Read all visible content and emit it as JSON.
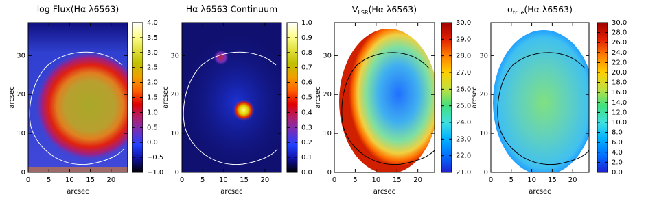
{
  "chart_data": [
    {
      "type": "heatmap",
      "title": "log Flux(Hα λ6563)",
      "xlabel": "arcsec",
      "ylabel": "arcsec",
      "xlim": [
        0,
        24
      ],
      "ylim": [
        0,
        38.5
      ],
      "xticks": [
        0,
        5,
        10,
        15,
        20
      ],
      "yticks": [
        0,
        10,
        20,
        30
      ],
      "colorbar": {
        "lim": [
          -1,
          4
        ],
        "colors": [
          "#000000",
          "#1010a0",
          "#2040ff",
          "#7030c0",
          "#b02070",
          "#e00000",
          "#ff6000",
          "#f0a000",
          "#c0c000",
          "#e0e040",
          "#ffff90",
          "#ffffff"
        ],
        "ticks": [
          {
            "value": 4,
            "label": "4.0"
          },
          3.5,
          {
            "value": 3,
            "label": "3.0"
          },
          2.5,
          {
            "value": 2,
            "label": "2.0"
          },
          1.5,
          {
            "value": 1,
            "label": "1.0"
          },
          0.5,
          {
            "value": 0,
            "label": "0.0"
          },
          {
            "value": -0.5,
            "label": "−0.5"
          },
          {
            "value": -1,
            "label": "−1.0"
          }
        ]
      }
    },
    {
      "type": "heatmap",
      "title": "Hα λ6563 Continuum",
      "xlabel": "arcsec",
      "ylabel": "arcsec",
      "xlim": [
        0,
        24
      ],
      "ylim": [
        0,
        38.5
      ],
      "xticks": [
        0,
        5,
        10,
        15,
        20
      ],
      "yticks": [
        0,
        10,
        20,
        30
      ],
      "colorbar": {
        "lim": [
          0,
          1
        ],
        "colors": [
          "#000000",
          "#1010a0",
          "#2040ff",
          "#7030c0",
          "#b02070",
          "#e00000",
          "#ff6000",
          "#f0a000",
          "#c0c000",
          "#e0e040",
          "#ffff90",
          "#ffffff"
        ],
        "ticks": [
          {
            "value": 1,
            "label": "1.0"
          },
          0.9,
          0.8,
          0.7,
          0.6,
          0.5,
          0.4,
          0.3,
          0.2,
          0.1,
          {
            "value": 0,
            "label": "0.0"
          }
        ]
      }
    },
    {
      "type": "heatmap",
      "title": {
        "symbol": "V",
        "subscript": "LSR",
        "text": "(Hα λ6563)"
      },
      "xlabel": "arcsec",
      "ylabel": "arcsec",
      "xlim": [
        0,
        24
      ],
      "ylim": [
        0,
        38.5
      ],
      "xticks": [
        0,
        5,
        10,
        15,
        20
      ],
      "yticks": [
        0,
        10,
        20,
        30
      ],
      "colorbar": {
        "lim": [
          21,
          30
        ],
        "colors": [
          "#2020d0",
          "#0070ff",
          "#00b0ff",
          "#40e0e0",
          "#40e080",
          "#c0e040",
          "#ffd000",
          "#ff8000",
          "#e02000",
          "#a00000"
        ],
        "ticks": [
          {
            "value": 30,
            "label": "30.0"
          },
          {
            "value": 29,
            "label": "29.0"
          },
          {
            "value": 28,
            "label": "28.0"
          },
          {
            "value": 27,
            "label": "27.0"
          },
          {
            "value": 26,
            "label": "26.0"
          },
          {
            "value": 25,
            "label": "25.0"
          },
          {
            "value": 24,
            "label": "24.0"
          },
          {
            "value": 23,
            "label": "23.0"
          },
          {
            "value": 22,
            "label": "22.0"
          },
          {
            "value": 21,
            "label": "21.0"
          }
        ]
      }
    },
    {
      "type": "heatmap",
      "title": {
        "symbol": "σ",
        "subscript": "true",
        "text": "(Hα λ6563)"
      },
      "xlabel": "arcsec",
      "ylabel": "arcsec",
      "xlim": [
        0,
        24
      ],
      "ylim": [
        0,
        38.5
      ],
      "xticks": [
        0,
        5,
        10,
        15,
        20
      ],
      "yticks": [
        0,
        10,
        20,
        30
      ],
      "colorbar": {
        "lim": [
          0,
          30
        ],
        "colors": [
          "#2020d0",
          "#0070ff",
          "#00b0ff",
          "#40e0e0",
          "#40e080",
          "#c0e040",
          "#ffd000",
          "#ff8000",
          "#e02000",
          "#a00000"
        ],
        "ticks": [
          {
            "value": 30,
            "label": "30.0"
          },
          {
            "value": 28,
            "label": "28.0"
          },
          {
            "value": 26,
            "label": "26.0"
          },
          {
            "value": 24,
            "label": "24.0"
          },
          {
            "value": 22,
            "label": "22.0"
          },
          {
            "value": 20,
            "label": "20.0"
          },
          {
            "value": 18,
            "label": "18.0"
          },
          {
            "value": 16,
            "label": "16.0"
          },
          {
            "value": 14,
            "label": "14.0"
          },
          {
            "value": 12,
            "label": "12.0"
          },
          {
            "value": 10,
            "label": "10.0"
          },
          {
            "value": 8,
            "label": "8.0"
          },
          {
            "value": 6,
            "label": "6.0"
          },
          {
            "value": 4,
            "label": "4.0"
          },
          {
            "value": 2,
            "label": "2.0"
          },
          {
            "value": 0,
            "label": "0.0"
          }
        ]
      }
    }
  ]
}
